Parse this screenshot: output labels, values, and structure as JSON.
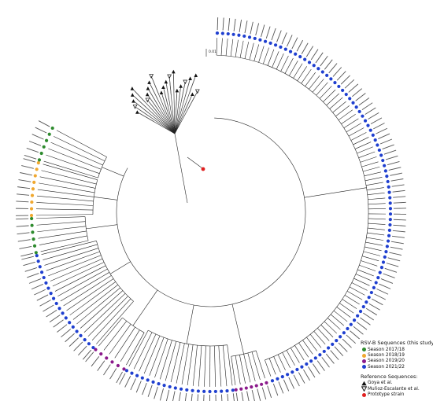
{
  "figure": {
    "scale_bar_label": "0.01"
  },
  "colors": {
    "season_2017_18": "#2e8b2e",
    "season_2018_19": "#f0a830",
    "season_2019_20": "#8b1a8b",
    "season_2021_22": "#1f3fcf",
    "goya": "#111111",
    "munoz": "#111111",
    "prototype": "#e02020",
    "branch": "#222222",
    "label": "#111111"
  },
  "legend": {
    "study_title": "RSV-B Sequences (this study):",
    "study_items": [
      {
        "label": "Season 2017/18",
        "color": "#2e8b2e",
        "icon": "filled-circle"
      },
      {
        "label": "Season 2018/19",
        "color": "#f0a830",
        "icon": "filled-circle"
      },
      {
        "label": "Season 2019/20",
        "color": "#8b1a8b",
        "icon": "filled-circle"
      },
      {
        "label": "Season 2021/22",
        "color": "#1f3fcf",
        "icon": "filled-circle"
      }
    ],
    "reference_title": "Reference Sequences:",
    "reference_items": [
      {
        "label": "Goya et al.",
        "color": "#111111",
        "icon": "filled-triangle"
      },
      {
        "label": "Muñoz-Escalante et al.",
        "color": "#111111",
        "icon": "open-triangle-down"
      },
      {
        "label": "Prototype strain",
        "color": "#e02020",
        "icon": "filled-circle"
      }
    ]
  }
}
